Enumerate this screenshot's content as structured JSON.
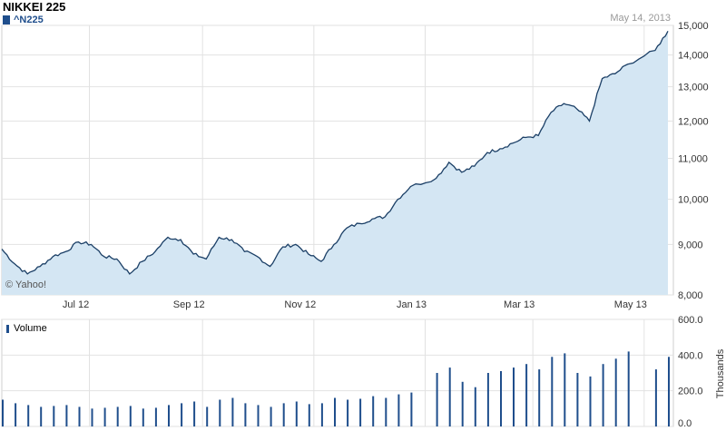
{
  "header": {
    "title": "NIKKEI 225",
    "series_label": "^N225",
    "date_label": "May 14, 2013",
    "credit": "© Yahoo!"
  },
  "volume_panel": {
    "legend_label": "Volume",
    "axis_label": "Thousands"
  },
  "colors": {
    "line": "#1b3f66",
    "area": "#d4e6f3",
    "bars": "#1f4e8c",
    "grid": "#e2e2e2"
  },
  "chart_data": [
    {
      "type": "area",
      "series": [
        {
          "name": "^N225",
          "x": [
            "2012-05-14",
            "2012-05-21",
            "2012-05-28",
            "2012-06-04",
            "2012-06-11",
            "2012-06-18",
            "2012-06-25",
            "2012-07-02",
            "2012-07-09",
            "2012-07-16",
            "2012-07-23",
            "2012-07-30",
            "2012-08-06",
            "2012-08-13",
            "2012-08-20",
            "2012-08-27",
            "2012-09-03",
            "2012-09-10",
            "2012-09-17",
            "2012-09-24",
            "2012-10-01",
            "2012-10-08",
            "2012-10-15",
            "2012-10-22",
            "2012-10-29",
            "2012-11-05",
            "2012-11-12",
            "2012-11-19",
            "2012-11-26",
            "2012-12-03",
            "2012-12-10",
            "2012-12-17",
            "2012-12-24",
            "2013-01-07",
            "2013-01-14",
            "2013-01-21",
            "2013-01-28",
            "2013-02-04",
            "2013-02-11",
            "2013-02-18",
            "2013-02-25",
            "2013-03-04",
            "2013-03-11",
            "2013-03-18",
            "2013-03-25",
            "2013-04-01",
            "2013-04-08",
            "2013-04-15",
            "2013-04-22",
            "2013-05-07",
            "2013-05-14"
          ],
          "values": [
            8900,
            8600,
            8400,
            8550,
            8750,
            8850,
            9050,
            9000,
            8750,
            8700,
            8400,
            8650,
            8850,
            9150,
            9100,
            8800,
            8700,
            9150,
            9100,
            8850,
            8750,
            8550,
            8950,
            9000,
            8800,
            8650,
            9000,
            9350,
            9450,
            9550,
            9600,
            10000,
            10300,
            10500,
            10900,
            10650,
            10800,
            11150,
            11250,
            11400,
            11550,
            11600,
            12250,
            12500,
            12350,
            12000,
            13250,
            13400,
            13700,
            14150,
            14800
          ]
        }
      ],
      "x_tick_labels": [
        "Jul 12",
        "Sep 12",
        "Nov 12",
        "Jan 13",
        "Mar 13",
        "May 13"
      ],
      "x_tick_dates": [
        "2012-07-01",
        "2012-09-01",
        "2012-11-01",
        "2013-01-01",
        "2013-03-01",
        "2013-05-01"
      ],
      "y_tick_labels": [
        "8,000",
        "9,000",
        "10,000",
        "11,000",
        "12,000",
        "13,000",
        "14,000",
        "15,000"
      ],
      "y_ticks": [
        8000,
        9000,
        10000,
        11000,
        12000,
        13000,
        14000,
        15000
      ],
      "ylim": [
        8000,
        15000
      ],
      "scale": "log",
      "grid": true
    },
    {
      "type": "bar",
      "series": [
        {
          "name": "Volume",
          "x": [
            "2012-05-14",
            "2012-05-21",
            "2012-05-28",
            "2012-06-04",
            "2012-06-11",
            "2012-06-18",
            "2012-06-25",
            "2012-07-02",
            "2012-07-09",
            "2012-07-16",
            "2012-07-23",
            "2012-07-30",
            "2012-08-06",
            "2012-08-13",
            "2012-08-20",
            "2012-08-27",
            "2012-09-03",
            "2012-09-10",
            "2012-09-17",
            "2012-09-24",
            "2012-10-01",
            "2012-10-08",
            "2012-10-15",
            "2012-10-22",
            "2012-10-29",
            "2012-11-05",
            "2012-11-12",
            "2012-11-19",
            "2012-11-26",
            "2012-12-03",
            "2012-12-10",
            "2012-12-17",
            "2012-12-24",
            "2013-01-07",
            "2013-01-14",
            "2013-01-21",
            "2013-01-28",
            "2013-02-04",
            "2013-02-11",
            "2013-02-18",
            "2013-02-25",
            "2013-03-04",
            "2013-03-11",
            "2013-03-18",
            "2013-03-25",
            "2013-04-01",
            "2013-04-08",
            "2013-04-15",
            "2013-04-22",
            "2013-05-07",
            "2013-05-14"
          ],
          "values": [
            150,
            130,
            120,
            110,
            115,
            120,
            110,
            100,
            105,
            110,
            115,
            100,
            105,
            120,
            130,
            140,
            110,
            150,
            160,
            130,
            120,
            110,
            130,
            140,
            125,
            130,
            160,
            150,
            155,
            170,
            160,
            180,
            190,
            300,
            330,
            250,
            220,
            300,
            310,
            330,
            350,
            320,
            390,
            410,
            300,
            280,
            350,
            380,
            420,
            320,
            390
          ]
        }
      ],
      "y_tick_labels": [
        "0.0",
        "200.0",
        "400.0",
        "600.0"
      ],
      "y_ticks": [
        0,
        200,
        400,
        600
      ],
      "ylim": [
        0,
        600
      ],
      "ylabel": "Thousands",
      "grid": true
    }
  ]
}
